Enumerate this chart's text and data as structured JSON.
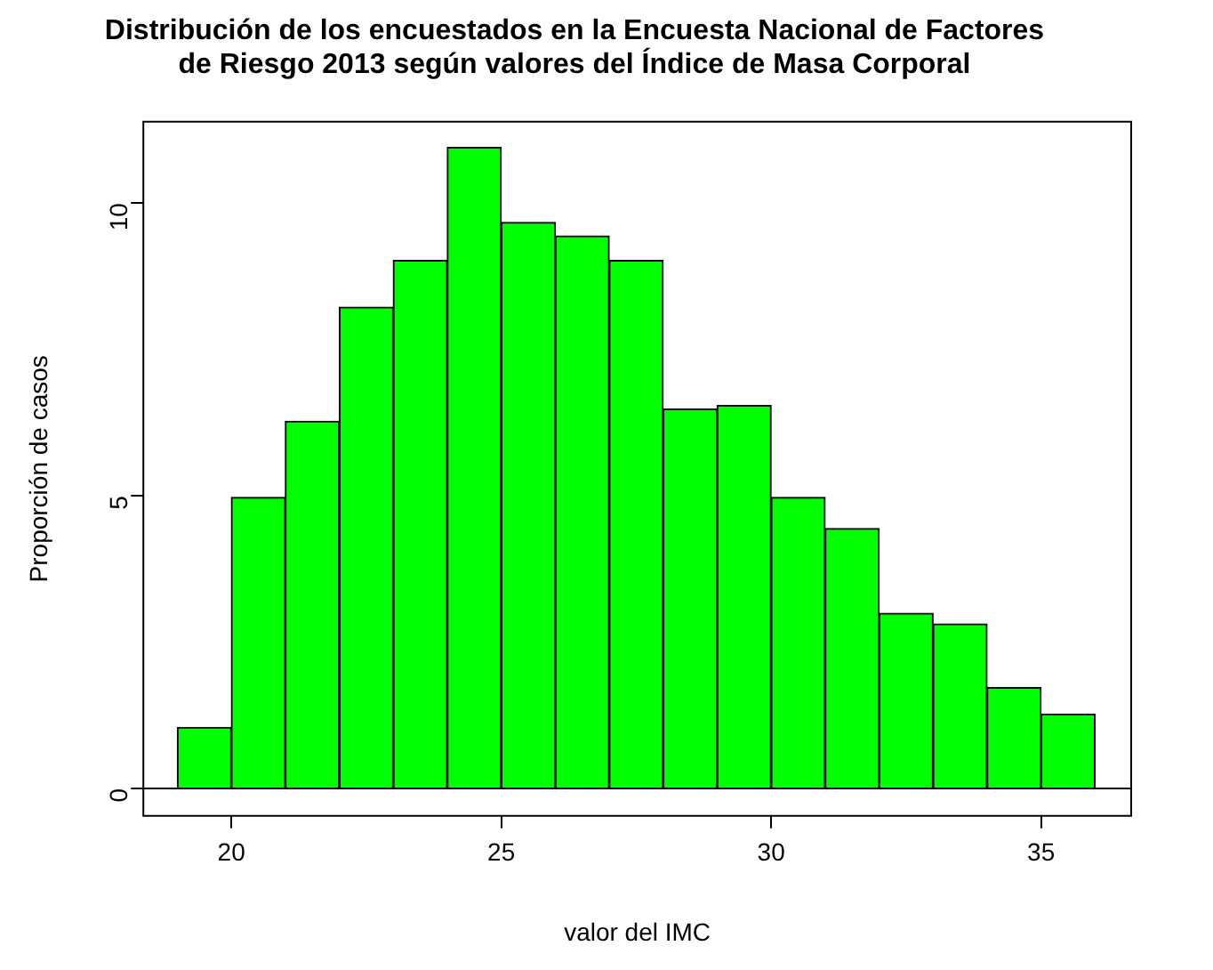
{
  "chart_data": {
    "type": "histogram",
    "title": "Distribución de los encuestados en la Encuesta Nacional de Factores\nde Riesgo 2013 según valores del Índice de Masa Corporal",
    "xlabel": "valor del IMC",
    "ylabel": "Proporción de casos",
    "bins": [
      19,
      20,
      21,
      22,
      23,
      24,
      25,
      26,
      27,
      28,
      29,
      30,
      31,
      32,
      33,
      34,
      35,
      36
    ],
    "values": [
      1.04,
      4.97,
      6.27,
      8.22,
      9.02,
      10.95,
      9.67,
      9.44,
      9.02,
      6.48,
      6.54,
      4.97,
      4.44,
      2.99,
      2.81,
      1.72,
      1.27
    ],
    "color": "#00ff00",
    "xlim": [
      18.37,
      36.67
    ],
    "xticks": [
      20,
      25,
      30,
      35
    ],
    "ylim": [
      -0.47,
      11.39
    ],
    "yticks": [
      0,
      5,
      10
    ],
    "ref_lines": [
      {
        "axis": "y",
        "value": 0,
        "color": "#000000"
      }
    ],
    "grid": false,
    "legend": false
  }
}
